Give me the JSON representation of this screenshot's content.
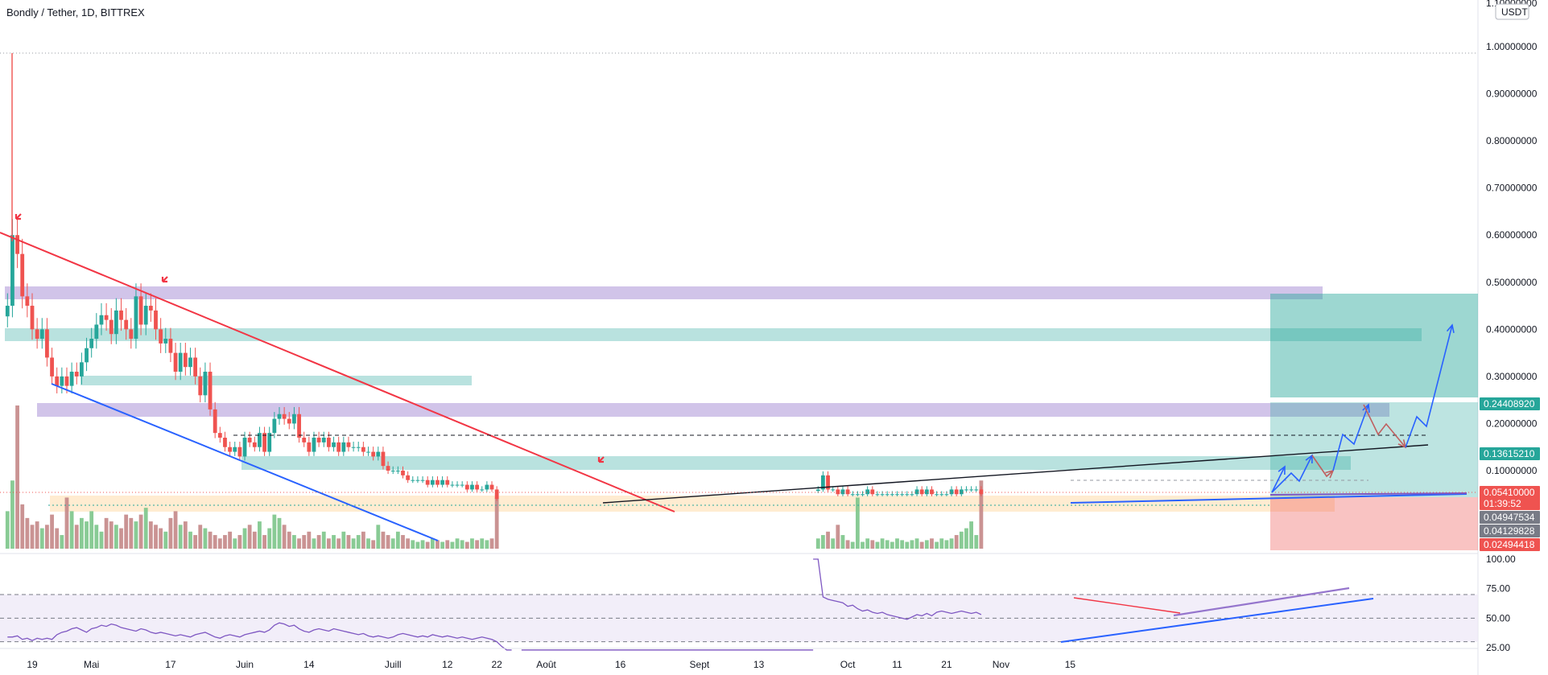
{
  "header": {
    "title": "Bondly / Tether, 1D, BITTREX",
    "currency_tag": "USDT"
  },
  "colors": {
    "up": "#26a69a",
    "down": "#ef5350",
    "vol_up": "#7cc58a",
    "vol_down": "#c48787",
    "trend_red": "#f23645",
    "trend_blue": "#2962ff",
    "zone_purple": "#b39ddb",
    "zone_teal": "#80cbc4",
    "zone_orange": "#ffe0b2",
    "rsi_line": "#7e57c2",
    "rsi_band": "#ede7f6",
    "target_green": "#26a69a",
    "stop_red": "#ef5350"
  },
  "chart_data": [
    {
      "type": "candlestick",
      "title": "Bondly / Tether, 1D, BITTREX",
      "price_ticks": [
        "1.00000000",
        "0.90000000",
        "0.80000000",
        "0.70000000",
        "0.60000000",
        "0.50000000",
        "0.40000000",
        "0.30000000",
        "0.20000000",
        "0.10000000"
      ],
      "price_tick_values": [
        1.0,
        0.9,
        0.8,
        0.7,
        0.6,
        0.5,
        0.4,
        0.3,
        0.2,
        0.1
      ],
      "top_cut_label": "1.10000000",
      "ylim": [
        0.02,
        1.1
      ],
      "x_tick_labels": [
        "19",
        "Mai",
        "17",
        "Juin",
        "14",
        "Juill",
        "12",
        "22",
        "Août",
        "16",
        "Sept",
        "13",
        "Oct",
        "11",
        "21",
        "Nov",
        "15"
      ],
      "x_tick_dates": [
        "2021-04-19",
        "2021-05-01",
        "2021-05-17",
        "2021-06-01",
        "2021-06-14",
        "2021-07-01",
        "2021-07-12",
        "2021-07-22",
        "2021-08-01",
        "2021-08-16",
        "2021-09-01",
        "2021-09-13",
        "2021-10-01",
        "2021-10-11",
        "2021-10-21",
        "2021-11-01",
        "2021-11-15"
      ],
      "price_badges": [
        {
          "label": "0.24408920",
          "value": 0.2441,
          "color": "#26a69a"
        },
        {
          "label": "0.13615210",
          "value": 0.1362,
          "color": "#26a69a"
        },
        {
          "label": "0.05410000",
          "value": 0.0541,
          "color": "#ef5350"
        },
        {
          "label": "01:39:52",
          "value": 0.0441,
          "color": "#ef5350"
        },
        {
          "label": "0.04947534",
          "value": 0.0395,
          "color": "#787b86"
        },
        {
          "label": "0.04129828",
          "value": 0.03,
          "color": "#787b86"
        },
        {
          "label": "0.02494418",
          "value": 0.02,
          "color": "#ef5350"
        }
      ],
      "segments": [
        {
          "start": "2021-04-14",
          "values": [
            0.45,
            0.6,
            0.56,
            0.47,
            0.45,
            0.4,
            0.38,
            0.4,
            0.34,
            0.3,
            0.28,
            0.3,
            0.28,
            0.31,
            0.3,
            0.33,
            0.36,
            0.38,
            0.41,
            0.43,
            0.42,
            0.39,
            0.44,
            0.42,
            0.4,
            0.38,
            0.47,
            0.41,
            0.45,
            0.44,
            0.4,
            0.37,
            0.38,
            0.35,
            0.31,
            0.35,
            0.32,
            0.34,
            0.3,
            0.26,
            0.31,
            0.23,
            0.18,
            0.17,
            0.15,
            0.14,
            0.15,
            0.13,
            0.17,
            0.16,
            0.15,
            0.18,
            0.14,
            0.18,
            0.21,
            0.22,
            0.21,
            0.2,
            0.22,
            0.17,
            0.16,
            0.14,
            0.17,
            0.16,
            0.17,
            0.15,
            0.16,
            0.14,
            0.16,
            0.15,
            0.15,
            0.15,
            0.14,
            0.14,
            0.13,
            0.14,
            0.11,
            0.1,
            0.1,
            0.1,
            0.09,
            0.08,
            0.08,
            0.08,
            0.08,
            0.07,
            0.08,
            0.07,
            0.08,
            0.07,
            0.07,
            0.07,
            0.07,
            0.06,
            0.07,
            0.06,
            0.06,
            0.07,
            0.06,
            0.04
          ]
        },
        {
          "start": "2021-09-25",
          "values": [
            0.06,
            0.09,
            0.06,
            0.06,
            0.05,
            0.06,
            0.05,
            0.05,
            0.05,
            0.05,
            0.06,
            0.05,
            0.05,
            0.05,
            0.05,
            0.05,
            0.05,
            0.05,
            0.05,
            0.05,
            0.06,
            0.05,
            0.06,
            0.05,
            0.05,
            0.05,
            0.05,
            0.06,
            0.05,
            0.06,
            0.06,
            0.06,
            0.06,
            0.05
          ]
        }
      ],
      "volume_segments": [
        {
          "start": "2021-04-14",
          "values": [
            22,
            40,
            84,
            26,
            18,
            14,
            16,
            12,
            14,
            20,
            12,
            8,
            30,
            22,
            14,
            18,
            16,
            22,
            14,
            10,
            18,
            16,
            14,
            12,
            20,
            18,
            16,
            20,
            24,
            16,
            14,
            12,
            10,
            18,
            22,
            14,
            16,
            10,
            8,
            14,
            12,
            10,
            8,
            6,
            8,
            10,
            6,
            8,
            12,
            14,
            10,
            16,
            8,
            12,
            20,
            18,
            14,
            10,
            8,
            6,
            8,
            10,
            6,
            8,
            10,
            6,
            8,
            6,
            10,
            8,
            6,
            8,
            10,
            6,
            5,
            14,
            10,
            8,
            6,
            10,
            8,
            6,
            5,
            4,
            5,
            4,
            6,
            5,
            4,
            5,
            4,
            6,
            5,
            4,
            6,
            5,
            6,
            5,
            6,
            30
          ]
        },
        {
          "start": "2021-09-25",
          "values": [
            6,
            8,
            10,
            6,
            14,
            8,
            5,
            4,
            30,
            4,
            6,
            5,
            4,
            6,
            5,
            4,
            6,
            5,
            4,
            5,
            6,
            4,
            5,
            6,
            4,
            6,
            5,
            6,
            8,
            10,
            12,
            16,
            8,
            40
          ]
        }
      ],
      "rsi_ticks": [
        "100.00",
        "75.00",
        "50.00",
        "25.00"
      ],
      "rsi_tick_values": [
        100,
        75,
        50,
        25
      ],
      "rsi_levels": {
        "upper": 70,
        "mid": 50,
        "lower": 30
      },
      "rsi_segments": [
        {
          "start": "2021-04-14",
          "values": [
            34,
            34,
            35,
            32,
            33,
            31,
            33,
            32,
            33,
            32,
            36,
            38,
            39,
            41,
            42,
            40,
            38,
            41,
            42,
            44,
            43,
            45,
            44,
            42,
            41,
            40,
            39,
            41,
            40,
            38,
            37,
            38,
            37,
            36,
            35,
            36,
            35,
            34,
            36,
            37,
            38,
            36,
            34,
            33,
            35,
            36,
            35,
            34,
            36,
            37,
            38,
            39,
            38,
            40,
            44,
            46,
            45,
            43,
            44,
            41,
            39,
            38,
            40,
            41,
            40,
            39,
            41,
            40,
            39,
            38,
            37,
            36,
            37,
            35,
            34,
            35,
            34,
            33,
            34,
            36,
            37,
            36,
            35,
            34,
            35,
            34,
            36,
            35,
            34,
            35,
            34,
            33,
            34,
            33,
            32,
            33,
            34,
            33,
            32,
            30,
            26,
            23,
            23
          ]
        },
        {
          "start": "2021-07-27",
          "values": [
            23,
            23,
            23,
            23,
            23,
            23,
            23,
            23,
            23,
            23,
            23,
            23,
            23,
            23,
            23,
            23,
            23,
            23,
            23,
            23,
            23,
            23,
            23,
            23,
            23,
            23,
            23,
            23,
            23,
            23,
            23,
            23,
            23,
            23,
            23,
            23,
            23,
            23,
            23,
            23,
            23,
            23,
            23,
            23,
            23,
            23,
            23,
            23,
            23,
            23,
            23,
            23,
            23,
            23,
            23,
            23,
            23,
            23,
            23,
            23
          ]
        },
        {
          "start": "2021-09-24",
          "values": [
            100,
            100,
            68,
            66,
            65,
            64,
            63,
            60,
            61,
            58,
            56,
            57,
            55,
            54,
            55,
            53,
            52,
            51,
            50,
            49,
            51,
            53,
            52,
            54,
            52,
            55,
            56,
            55,
            54,
            55,
            56,
            55,
            54,
            55,
            53
          ]
        }
      ]
    }
  ]
}
